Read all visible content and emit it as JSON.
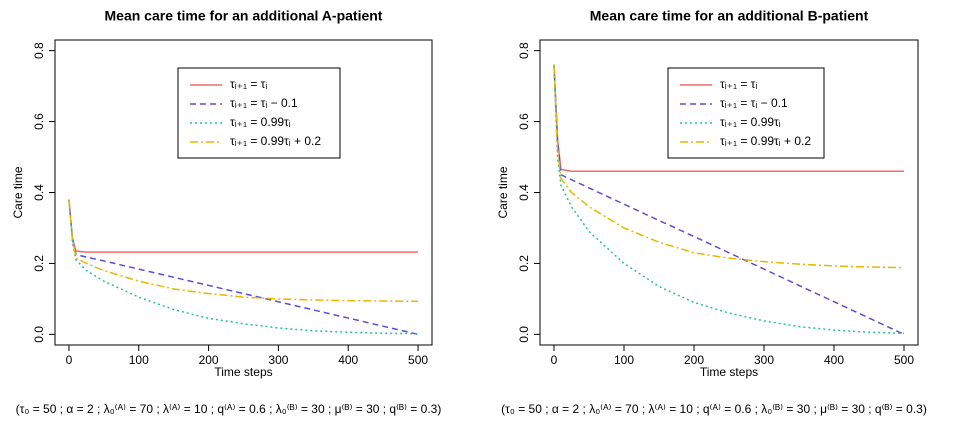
{
  "chart_data": [
    {
      "type": "line",
      "title": "Mean care time for an additional A-patient",
      "xlabel": "Time steps",
      "ylabel": "Care time",
      "caption": "(τ₀ = 50 ; α = 2 ; λ₀⁽ᴬ⁾ = 70 ; λ⁽ᴬ⁾ = 10 ; q⁽ᴬ⁾ = 0.6 ; λ₀⁽ᴮ⁾ = 30 ; μ⁽ᴮ⁾ = 30 ; q⁽ᴮ⁾ = 0.3)",
      "x": [
        0,
        5,
        10,
        25,
        50,
        100,
        150,
        200,
        250,
        300,
        350,
        400,
        450,
        500
      ],
      "xlim": [
        -20,
        520
      ],
      "xticks": [
        0,
        100,
        200,
        300,
        400,
        500
      ],
      "ylim": [
        -0.03,
        0.83
      ],
      "yticks": [
        {
          "value": 0,
          "label": "0.0"
        },
        0.2,
        0.4,
        0.6,
        0.8
      ],
      "legend": "top",
      "series": [
        {
          "name": "τᵢ₊₁ = τᵢ",
          "color": "#f26b6b",
          "linestyle": "solid",
          "values": [
            0.38,
            0.27,
            0.235,
            0.232,
            0.232,
            0.232,
            0.232,
            0.232,
            0.232,
            0.232,
            0.232,
            0.232,
            0.232,
            0.232
          ]
        },
        {
          "name": "τᵢ₊₁ = τᵢ − 0.1",
          "color": "#5a4fd6",
          "linestyle": "dashed",
          "values": [
            0.38,
            0.27,
            0.225,
            0.218,
            0.207,
            0.184,
            0.161,
            0.138,
            0.115,
            0.092,
            0.069,
            0.046,
            0.023,
            0
          ]
        },
        {
          "name": "τᵢ₊₁ = 0.99τᵢ",
          "color": "#22c0a0",
          "linestyle": "dotted",
          "values": [
            0.38,
            0.26,
            0.21,
            0.18,
            0.15,
            0.105,
            0.07,
            0.045,
            0.03,
            0.018,
            0.01,
            0.006,
            0.003,
            0.002
          ]
        },
        {
          "name": "τᵢ₊₁ = 0.99τᵢ + 0.2",
          "color": "#e6b800",
          "linestyle": "dashdot",
          "values": [
            0.38,
            0.27,
            0.215,
            0.2,
            0.18,
            0.15,
            0.128,
            0.115,
            0.105,
            0.1,
            0.097,
            0.095,
            0.094,
            0.093
          ]
        }
      ]
    },
    {
      "type": "line",
      "title": "Mean care time for an additional B-patient",
      "xlabel": "Time steps",
      "ylabel": "Care time",
      "caption": "(τ₀ = 50 ; α = 2 ; λ₀⁽ᴬ⁾ = 70 ; λ⁽ᴬ⁾ = 10 ; q⁽ᴬ⁾ = 0.6 ; λ₀⁽ᴮ⁾ = 30 ; μ⁽ᴮ⁾ = 30 ; q⁽ᴮ⁾ = 0.3)",
      "x": [
        0,
        5,
        10,
        25,
        50,
        100,
        150,
        200,
        250,
        300,
        350,
        400,
        450,
        500
      ],
      "xlim": [
        -20,
        520
      ],
      "xticks": [
        0,
        100,
        200,
        300,
        400,
        500
      ],
      "ylim": [
        -0.03,
        0.83
      ],
      "yticks": [
        {
          "value": 0,
          "label": "0.0"
        },
        0.2,
        0.4,
        0.6,
        0.8
      ],
      "legend": "top",
      "series": [
        {
          "name": "τᵢ₊₁ = τᵢ",
          "color": "#f26b6b",
          "linestyle": "solid",
          "values": [
            0.76,
            0.55,
            0.465,
            0.46,
            0.46,
            0.46,
            0.46,
            0.46,
            0.46,
            0.46,
            0.46,
            0.46,
            0.46,
            0.46
          ]
        },
        {
          "name": "τᵢ₊₁ = τᵢ − 0.1",
          "color": "#5a4fd6",
          "linestyle": "dashed",
          "values": [
            0.76,
            0.55,
            0.45,
            0.436,
            0.413,
            0.367,
            0.321,
            0.276,
            0.23,
            0.184,
            0.138,
            0.092,
            0.046,
            0
          ]
        },
        {
          "name": "τᵢ₊₁ = 0.99τᵢ",
          "color": "#22c0a0",
          "linestyle": "dotted",
          "values": [
            0.76,
            0.5,
            0.42,
            0.36,
            0.29,
            0.2,
            0.135,
            0.09,
            0.06,
            0.038,
            0.022,
            0.012,
            0.006,
            0.003
          ]
        },
        {
          "name": "τᵢ₊₁ = 0.99τᵢ + 0.2",
          "color": "#e6b800",
          "linestyle": "dashdot",
          "values": [
            0.76,
            0.52,
            0.44,
            0.4,
            0.36,
            0.3,
            0.26,
            0.23,
            0.215,
            0.205,
            0.198,
            0.193,
            0.19,
            0.188
          ]
        }
      ]
    }
  ]
}
